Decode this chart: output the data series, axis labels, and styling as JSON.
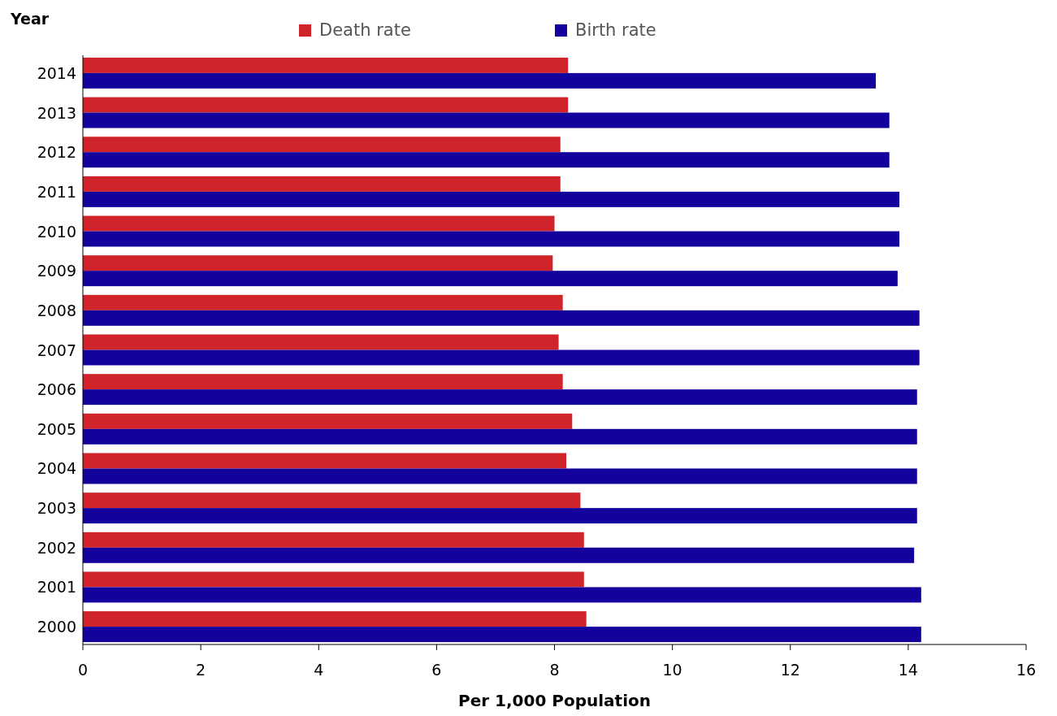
{
  "chart_data": {
    "type": "bar",
    "orientation": "horizontal",
    "ylabel": "Year",
    "xlabel": "Per 1,000 Population",
    "categories": [
      "2014",
      "2013",
      "2012",
      "2011",
      "2010",
      "2009",
      "2008",
      "2007",
      "2006",
      "2005",
      "2004",
      "2003",
      "2002",
      "2001",
      "2000"
    ],
    "series": [
      {
        "name": "Death rate",
        "color": "#d0232a",
        "values": [
          8.23,
          8.23,
          8.1,
          8.1,
          8.0,
          7.97,
          8.14,
          8.07,
          8.14,
          8.3,
          8.2,
          8.44,
          8.5,
          8.5,
          8.54
        ]
      },
      {
        "name": "Birth rate",
        "color": "#13039c",
        "values": [
          13.45,
          13.68,
          13.68,
          13.85,
          13.85,
          13.82,
          14.19,
          14.19,
          14.15,
          14.15,
          14.15,
          14.15,
          14.1,
          14.22,
          14.22
        ]
      }
    ],
    "xlim": [
      0,
      16
    ],
    "xticks": [
      0,
      2,
      4,
      6,
      8,
      10,
      12,
      14,
      16
    ],
    "grid": false,
    "legend": "top"
  }
}
